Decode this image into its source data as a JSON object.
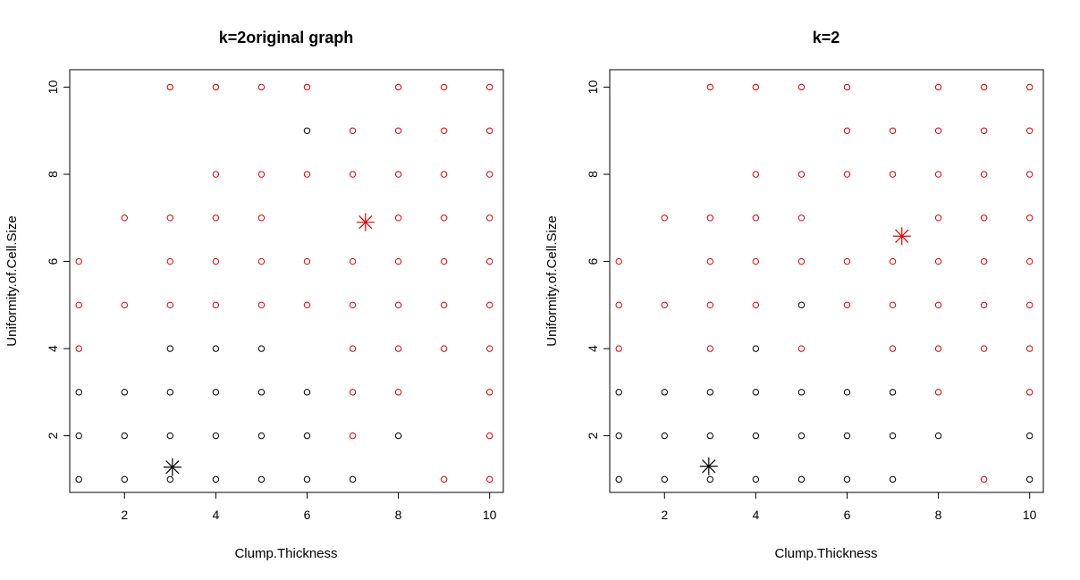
{
  "chart_data": [
    {
      "type": "scatter",
      "title": "k=2original graph",
      "xlabel": "Clump.Thickness",
      "ylabel": "Uniformity.of.Cell.Size",
      "xlim": [
        0.8,
        10.3
      ],
      "ylim": [
        0.7,
        10.4
      ],
      "xticks": [
        2,
        4,
        6,
        8,
        10
      ],
      "yticks": [
        2,
        4,
        6,
        8,
        10
      ],
      "grid": false,
      "colors": {
        "cluster_1": "#000000",
        "cluster_2": "#DF0000"
      },
      "series": [
        {
          "cluster": 1,
          "x": [
            1,
            2,
            3,
            4,
            5,
            6,
            7,
            1,
            2,
            3,
            4,
            5,
            6,
            8,
            1,
            2,
            3,
            4,
            5,
            6,
            3,
            4,
            5,
            6
          ],
          "y": [
            1,
            1,
            1,
            1,
            1,
            1,
            1,
            2,
            2,
            2,
            2,
            2,
            2,
            2,
            3,
            3,
            3,
            3,
            3,
            3,
            4,
            4,
            4,
            9
          ]
        },
        {
          "cluster": 2,
          "x": [
            9,
            10,
            7,
            10,
            7,
            8,
            10,
            1,
            7,
            8,
            9,
            10,
            1,
            2,
            3,
            4,
            5,
            6,
            7,
            8,
            9,
            10,
            1,
            3,
            4,
            5,
            6,
            7,
            8,
            9,
            10,
            2,
            3,
            4,
            5,
            8,
            9,
            10,
            4,
            5,
            6,
            7,
            8,
            9,
            10,
            7,
            8,
            9,
            10,
            3,
            4,
            5,
            6,
            8,
            9,
            10
          ],
          "y": [
            1,
            1,
            2,
            2,
            3,
            3,
            3,
            4,
            4,
            4,
            4,
            4,
            5,
            5,
            5,
            5,
            5,
            5,
            5,
            5,
            5,
            5,
            6,
            6,
            6,
            6,
            6,
            6,
            6,
            6,
            6,
            7,
            7,
            7,
            7,
            7,
            7,
            7,
            8,
            8,
            8,
            8,
            8,
            8,
            8,
            9,
            9,
            9,
            9,
            10,
            10,
            10,
            10,
            10,
            10,
            10
          ]
        }
      ],
      "centers": [
        {
          "cluster": 1,
          "x": 3.05,
          "y": 1.28
        },
        {
          "cluster": 2,
          "x": 7.28,
          "y": 6.9
        }
      ]
    },
    {
      "type": "scatter",
      "title": "k=2",
      "xlabel": "Clump.Thickness",
      "ylabel": "Uniformity.of.Cell.Size",
      "xlim": [
        0.8,
        10.3
      ],
      "ylim": [
        0.7,
        10.4
      ],
      "xticks": [
        2,
        4,
        6,
        8,
        10
      ],
      "yticks": [
        2,
        4,
        6,
        8,
        10
      ],
      "grid": false,
      "colors": {
        "cluster_1": "#000000",
        "cluster_2": "#DF0000"
      },
      "series": [
        {
          "cluster": 1,
          "x": [
            1,
            2,
            3,
            4,
            5,
            6,
            7,
            10,
            1,
            2,
            3,
            4,
            5,
            6,
            7,
            8,
            10,
            1,
            2,
            3,
            4,
            5,
            6,
            7,
            4,
            5
          ],
          "y": [
            1,
            1,
            1,
            1,
            1,
            1,
            1,
            1,
            2,
            2,
            2,
            2,
            2,
            2,
            2,
            2,
            2,
            3,
            3,
            3,
            3,
            3,
            3,
            3,
            4,
            5
          ]
        },
        {
          "cluster": 2,
          "x": [
            9,
            8,
            10,
            1,
            3,
            5,
            7,
            8,
            9,
            10,
            1,
            2,
            3,
            4,
            6,
            7,
            8,
            9,
            10,
            1,
            3,
            4,
            5,
            6,
            7,
            8,
            9,
            10,
            2,
            3,
            4,
            5,
            8,
            9,
            10,
            4,
            5,
            6,
            7,
            8,
            9,
            10,
            6,
            7,
            8,
            9,
            10,
            3,
            4,
            5,
            6,
            8,
            9,
            10
          ],
          "y": [
            1,
            3,
            3,
            4,
            4,
            4,
            4,
            4,
            4,
            4,
            5,
            5,
            5,
            5,
            5,
            5,
            5,
            5,
            5,
            6,
            6,
            6,
            6,
            6,
            6,
            6,
            6,
            6,
            7,
            7,
            7,
            7,
            7,
            7,
            7,
            8,
            8,
            8,
            8,
            8,
            8,
            8,
            9,
            9,
            9,
            9,
            9,
            10,
            10,
            10,
            10,
            10,
            10,
            10
          ]
        }
      ],
      "centers": [
        {
          "cluster": 1,
          "x": 2.97,
          "y": 1.3
        },
        {
          "cluster": 2,
          "x": 7.2,
          "y": 6.58
        }
      ]
    }
  ]
}
